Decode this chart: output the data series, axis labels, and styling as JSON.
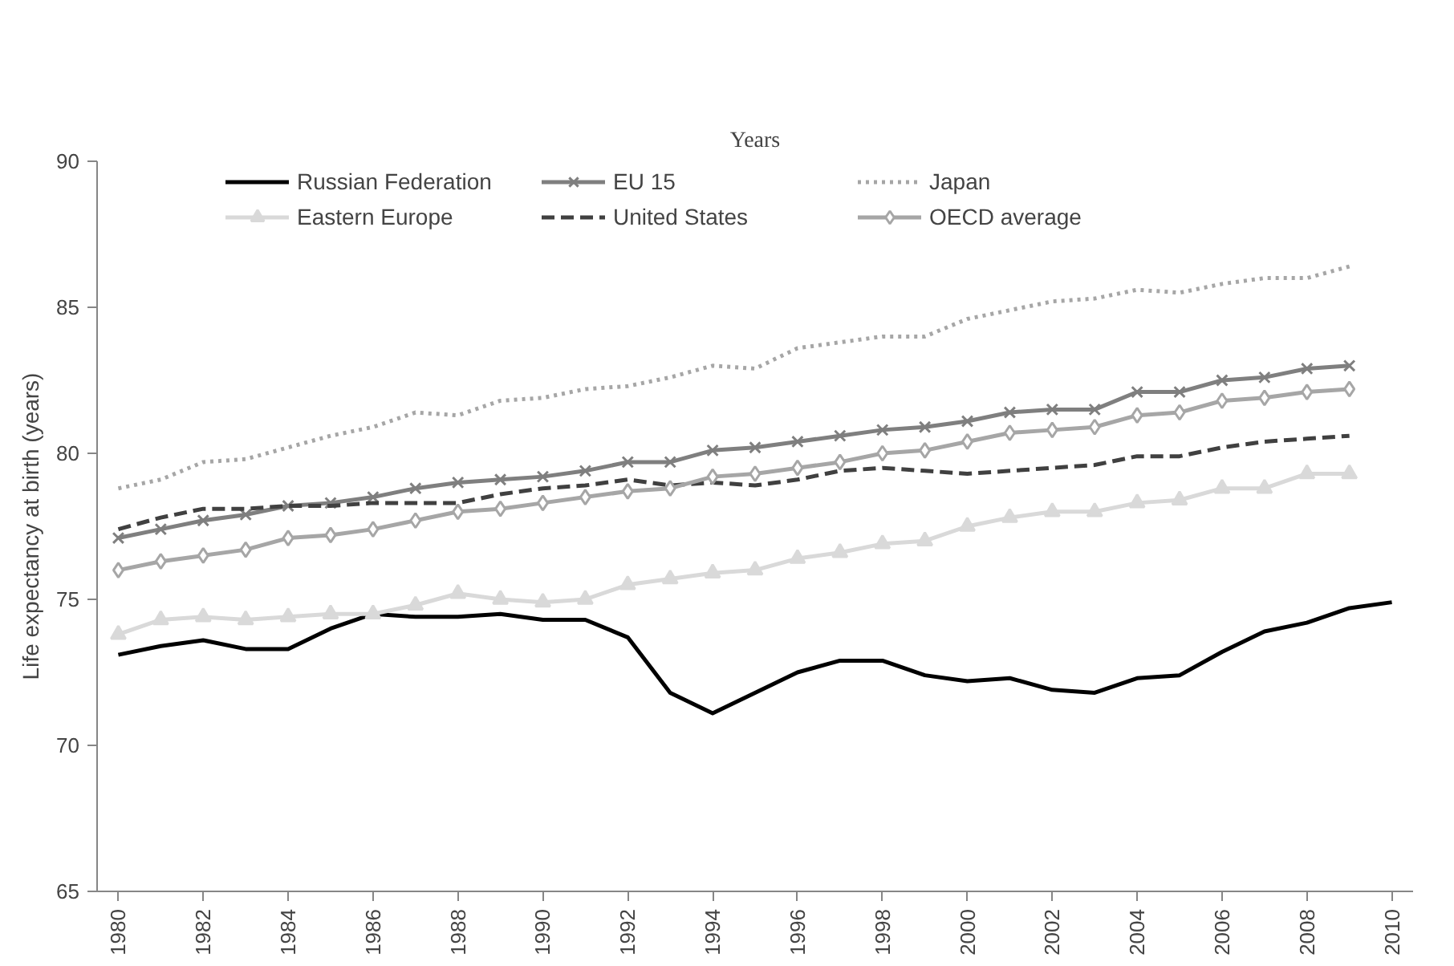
{
  "chart_data": {
    "type": "line",
    "title": "Years",
    "ylabel": "Life expectancy at birth (years)",
    "x": [
      1980,
      1981,
      1982,
      1983,
      1984,
      1985,
      1986,
      1987,
      1988,
      1989,
      1990,
      1991,
      1992,
      1993,
      1994,
      1995,
      1996,
      1997,
      1998,
      1999,
      2000,
      2001,
      2002,
      2003,
      2004,
      2005,
      2006,
      2007,
      2008,
      2009,
      2010
    ],
    "xlim": [
      1979.5,
      2010.5
    ],
    "xticks": [
      1980,
      1982,
      1984,
      1986,
      1988,
      1990,
      1992,
      1994,
      1996,
      1998,
      2000,
      2002,
      2004,
      2006,
      2008,
      2010
    ],
    "ylim": [
      65,
      90
    ],
    "yticks": [
      65,
      70,
      75,
      80,
      85,
      90
    ],
    "grid": false,
    "legend": "top",
    "series": [
      {
        "name": "Russian Federation",
        "color": "#000000",
        "marker": "none",
        "line_style": "solid",
        "values": [
          73.1,
          73.4,
          73.6,
          73.3,
          73.3,
          74.0,
          74.5,
          74.4,
          74.4,
          74.5,
          74.3,
          74.3,
          73.7,
          71.8,
          71.1,
          71.8,
          72.5,
          72.9,
          72.9,
          72.4,
          72.2,
          72.3,
          71.9,
          71.8,
          72.3,
          72.4,
          73.2,
          73.9,
          74.2,
          74.7,
          74.9
        ]
      },
      {
        "name": "Eastern Europe",
        "color": "#d9d9d9",
        "marker": "triangle",
        "line_style": "solid",
        "values": [
          73.8,
          74.3,
          74.4,
          74.3,
          74.4,
          74.5,
          74.5,
          74.8,
          75.2,
          75.0,
          74.9,
          75.0,
          75.5,
          75.7,
          75.9,
          76.0,
          76.4,
          76.6,
          76.9,
          77.0,
          77.5,
          77.8,
          78.0,
          78.0,
          78.3,
          78.4,
          78.8,
          78.8,
          79.3,
          79.3,
          null
        ]
      },
      {
        "name": "EU 15",
        "color": "#7f7f7f",
        "marker": "cross",
        "line_style": "solid",
        "values": [
          77.1,
          77.4,
          77.7,
          77.9,
          78.2,
          78.3,
          78.5,
          78.8,
          79.0,
          79.1,
          79.2,
          79.4,
          79.7,
          79.7,
          80.1,
          80.2,
          80.4,
          80.6,
          80.8,
          80.9,
          81.1,
          81.4,
          81.5,
          81.5,
          82.1,
          82.1,
          82.5,
          82.6,
          82.9,
          83.0,
          null
        ]
      },
      {
        "name": "United States",
        "color": "#404040",
        "marker": "none",
        "line_style": "dashed",
        "values": [
          77.4,
          77.8,
          78.1,
          78.1,
          78.2,
          78.2,
          78.3,
          78.3,
          78.3,
          78.6,
          78.8,
          78.9,
          79.1,
          78.9,
          79.0,
          78.9,
          79.1,
          79.4,
          79.5,
          79.4,
          79.3,
          79.4,
          79.5,
          79.6,
          79.9,
          79.9,
          80.2,
          80.4,
          80.5,
          80.6,
          null
        ]
      },
      {
        "name": "Japan",
        "color": "#a6a6a6",
        "marker": "none",
        "line_style": "dotted",
        "values": [
          78.8,
          79.1,
          79.7,
          79.8,
          80.2,
          80.6,
          80.9,
          81.4,
          81.3,
          81.8,
          81.9,
          82.2,
          82.3,
          82.6,
          83.0,
          82.9,
          83.6,
          83.8,
          84.0,
          84.0,
          84.6,
          84.9,
          85.2,
          85.3,
          85.6,
          85.5,
          85.8,
          86.0,
          86.0,
          86.4,
          null
        ]
      },
      {
        "name": "OECD average",
        "color": "#a6a6a6",
        "marker": "diamond",
        "line_style": "solid",
        "values": [
          76.0,
          76.3,
          76.5,
          76.7,
          77.1,
          77.2,
          77.4,
          77.7,
          78.0,
          78.1,
          78.3,
          78.5,
          78.7,
          78.8,
          79.2,
          79.3,
          79.5,
          79.7,
          80.0,
          80.1,
          80.4,
          80.7,
          80.8,
          80.9,
          81.3,
          81.4,
          81.8,
          81.9,
          82.1,
          82.2,
          null
        ]
      }
    ]
  }
}
